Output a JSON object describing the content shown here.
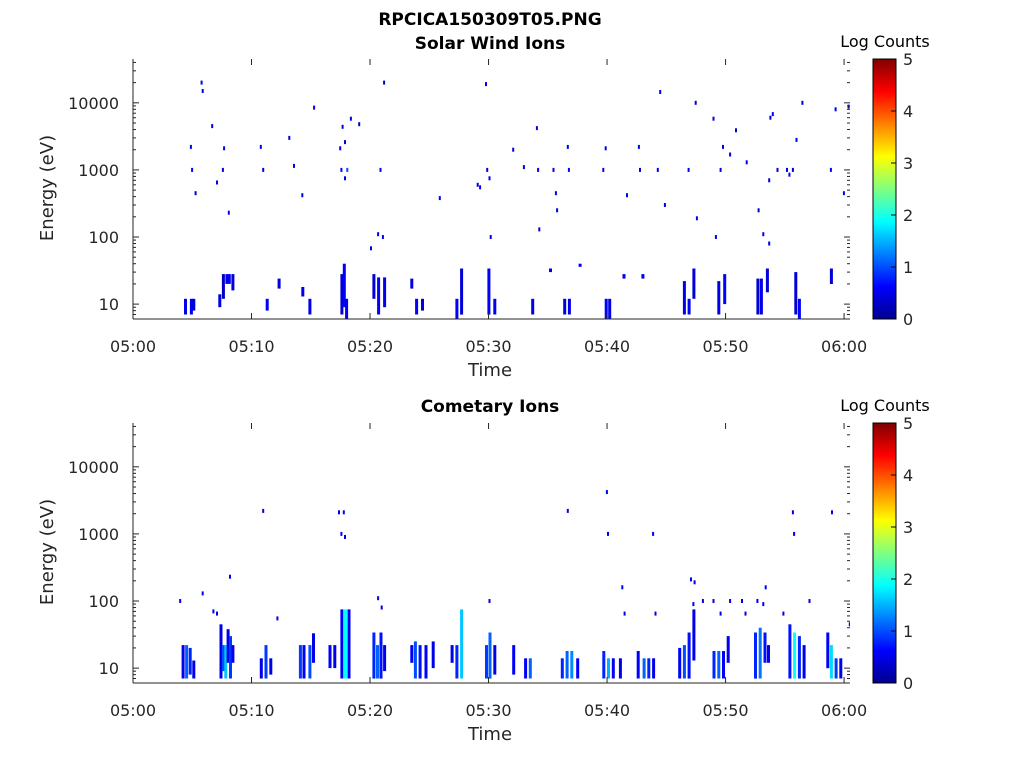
{
  "figure_title": "RPCICA150309T05.PNG",
  "colormap": [
    "#00008f",
    "#0000ff",
    "#0080ff",
    "#00ffff",
    "#80ff80",
    "#ffff00",
    "#ff8000",
    "#ff0000",
    "#800000"
  ],
  "chart_data": [
    {
      "type": "heatmap",
      "title": "Solar Wind Ions",
      "xlabel": "Time",
      "ylabel": "Energy (eV)",
      "x_ticks": [
        "05:00",
        "05:10",
        "05:20",
        "05:30",
        "05:40",
        "05:50",
        "06:00"
      ],
      "x_range_minutes": [
        0,
        60.5
      ],
      "y_scale": "log",
      "y_ticks": [
        "10",
        "100",
        "1000",
        "10000"
      ],
      "y_range": [
        6,
        45000
      ],
      "colorbar": {
        "label": "Log Counts",
        "ticks": [
          "0",
          "1",
          "2",
          "3",
          "4",
          "5"
        ],
        "range": [
          0,
          5
        ]
      },
      "cells": [
        [
          4.3,
          7,
          12,
          0.5
        ],
        [
          4.8,
          7,
          12,
          0.5
        ],
        [
          5.0,
          8,
          12,
          0.4
        ],
        [
          7.2,
          9,
          14,
          0.5
        ],
        [
          7.5,
          12,
          28,
          0.3
        ],
        [
          7.8,
          20,
          28,
          0.5
        ],
        [
          8.0,
          20,
          28,
          0.6
        ],
        [
          8.3,
          16,
          28,
          0.4
        ],
        [
          11.2,
          8,
          12,
          0.6
        ],
        [
          12.2,
          17,
          24,
          0.4
        ],
        [
          14.2,
          13,
          18,
          0.5
        ],
        [
          14.8,
          7,
          12,
          0.5
        ],
        [
          17.5,
          7,
          28,
          0.4
        ],
        [
          17.7,
          9,
          40,
          0.6
        ],
        [
          17.9,
          5,
          12,
          0.5
        ],
        [
          20.2,
          12,
          28,
          0.4
        ],
        [
          20.6,
          7,
          25,
          0.6
        ],
        [
          21.1,
          9,
          25,
          0.5
        ],
        [
          23.4,
          17,
          24,
          0.5
        ],
        [
          23.8,
          7,
          12,
          0.6
        ],
        [
          24.3,
          8,
          12,
          0.4
        ],
        [
          27.2,
          5,
          12,
          0.6
        ],
        [
          27.6,
          7,
          34,
          0.4
        ],
        [
          29.9,
          7,
          34,
          0.6
        ],
        [
          30.4,
          7,
          12,
          0.5
        ],
        [
          33.6,
          7,
          12,
          0.5
        ],
        [
          35.1,
          30,
          34,
          0.5
        ],
        [
          36.3,
          7,
          12,
          0.4
        ],
        [
          36.7,
          7,
          12,
          0.5
        ],
        [
          37.6,
          36,
          40,
          0.5
        ],
        [
          39.8,
          5,
          12,
          0.6
        ],
        [
          40.1,
          5,
          12,
          0.5
        ],
        [
          41.3,
          24,
          28,
          0.5
        ],
        [
          42.9,
          24,
          28,
          0.5
        ],
        [
          46.4,
          7,
          22,
          0.5
        ],
        [
          46.8,
          7,
          12,
          0.6
        ],
        [
          47.2,
          12,
          34,
          0.4
        ],
        [
          49.3,
          7,
          22,
          0.5
        ],
        [
          49.8,
          10,
          28,
          0.6
        ],
        [
          52.6,
          7,
          24,
          0.4
        ],
        [
          52.9,
          7,
          24,
          0.5
        ],
        [
          53.4,
          15,
          34,
          0.4
        ],
        [
          55.8,
          7,
          30,
          0.4
        ],
        [
          56.1,
          5,
          12,
          0.6
        ],
        [
          58.8,
          20,
          34,
          0.4
        ]
      ],
      "points": [
        [
          5.7,
          20000,
          0.5
        ],
        [
          5.8,
          15000,
          0.5
        ],
        [
          6.6,
          4500,
          0.4
        ],
        [
          4.8,
          2200,
          0.5
        ],
        [
          4.9,
          1000,
          0.6
        ],
        [
          5.2,
          450,
          0.4
        ],
        [
          7.0,
          650,
          0.5
        ],
        [
          7.5,
          1000,
          0.4
        ],
        [
          7.6,
          2100,
          0.5
        ],
        [
          8.0,
          230,
          0.6
        ],
        [
          10.7,
          2200,
          0.5
        ],
        [
          10.9,
          1000,
          0.5
        ],
        [
          13.1,
          3000,
          0.4
        ],
        [
          13.5,
          1150,
          0.5
        ],
        [
          14.2,
          420,
          0.5
        ],
        [
          15.2,
          8500,
          0.4
        ],
        [
          17.4,
          2100,
          0.5
        ],
        [
          17.5,
          1000,
          0.6
        ],
        [
          17.6,
          4400,
          0.4
        ],
        [
          17.8,
          2600,
          0.5
        ],
        [
          18.0,
          1000,
          1.0
        ],
        [
          18.3,
          5800,
          0.5
        ],
        [
          19.0,
          4800,
          0.4
        ],
        [
          17.8,
          750,
          0.5
        ],
        [
          20.6,
          110,
          0.5
        ],
        [
          21.0,
          100,
          0.5
        ],
        [
          21.1,
          20000,
          0.4
        ],
        [
          20.8,
          1000,
          0.6
        ],
        [
          20.0,
          68,
          0.4
        ],
        [
          25.8,
          380,
          0.5
        ],
        [
          29.0,
          600,
          0.5
        ],
        [
          29.2,
          550,
          0.5
        ],
        [
          29.8,
          1000,
          0.4
        ],
        [
          30.0,
          750,
          0.5
        ],
        [
          30.1,
          100,
          0.5
        ],
        [
          29.7,
          19000,
          0.4
        ],
        [
          32.0,
          2000,
          0.5
        ],
        [
          32.9,
          1100,
          0.4
        ],
        [
          34.0,
          4200,
          0.5
        ],
        [
          34.1,
          1000,
          0.6
        ],
        [
          34.2,
          130,
          0.4
        ],
        [
          35.4,
          1000,
          0.5
        ],
        [
          35.6,
          450,
          0.5
        ],
        [
          35.7,
          250,
          0.4
        ],
        [
          36.6,
          2200,
          0.5
        ],
        [
          36.7,
          1000,
          0.6
        ],
        [
          39.8,
          2100,
          0.4
        ],
        [
          39.6,
          1000,
          0.5
        ],
        [
          41.6,
          420,
          0.5
        ],
        [
          42.6,
          2200,
          0.5
        ],
        [
          42.7,
          1000,
          0.4
        ],
        [
          44.2,
          1000,
          0.5
        ],
        [
          44.4,
          14500,
          0.5
        ],
        [
          44.8,
          300,
          0.4
        ],
        [
          46.8,
          1000,
          0.5
        ],
        [
          47.4,
          10000,
          0.4
        ],
        [
          47.5,
          190,
          0.5
        ],
        [
          48.9,
          5800,
          0.5
        ],
        [
          49.1,
          100,
          0.5
        ],
        [
          49.5,
          1000,
          0.4
        ],
        [
          49.7,
          2200,
          0.5
        ],
        [
          50.3,
          1700,
          0.5
        ],
        [
          50.8,
          3900,
          0.4
        ],
        [
          51.7,
          1300,
          0.5
        ],
        [
          52.7,
          250,
          0.4
        ],
        [
          53.1,
          110,
          0.5
        ],
        [
          53.6,
          80,
          0.5
        ],
        [
          53.6,
          700,
          0.4
        ],
        [
          53.7,
          6000,
          0.5
        ],
        [
          53.9,
          6800,
          0.5
        ],
        [
          54.3,
          1000,
          0.4
        ],
        [
          55.1,
          1000,
          0.5
        ],
        [
          55.3,
          850,
          0.5
        ],
        [
          55.6,
          1000,
          0.4
        ],
        [
          55.9,
          2800,
          0.5
        ],
        [
          56.4,
          10000,
          0.4
        ],
        [
          58.8,
          1000,
          0.6
        ],
        [
          59.2,
          8000,
          0.5
        ],
        [
          59.9,
          450,
          0.5
        ],
        [
          60.3,
          8800,
          0.4
        ]
      ]
    },
    {
      "type": "heatmap",
      "title": "Cometary Ions",
      "xlabel": "Time",
      "ylabel": "Energy (eV)",
      "x_ticks": [
        "05:00",
        "05:10",
        "05:20",
        "05:30",
        "05:40",
        "05:50",
        "06:00"
      ],
      "x_range_minutes": [
        0,
        60.5
      ],
      "y_scale": "log",
      "y_ticks": [
        "10",
        "100",
        "1000",
        "10000"
      ],
      "y_range": [
        6,
        45000
      ],
      "colorbar": {
        "label": "Log Counts",
        "ticks": [
          "0",
          "1",
          "2",
          "3",
          "4",
          "5"
        ],
        "range": [
          0,
          5
        ]
      },
      "cells": [
        [
          4.1,
          7,
          22,
          0.5
        ],
        [
          4.4,
          7,
          22,
          1.1
        ],
        [
          4.7,
          8,
          20,
          0.8
        ],
        [
          5.0,
          7,
          13,
          0.5
        ],
        [
          7.3,
          7,
          45,
          0.5
        ],
        [
          7.5,
          9,
          22,
          1.0
        ],
        [
          7.7,
          7,
          22,
          1.6
        ],
        [
          7.9,
          12,
          38,
          0.5
        ],
        [
          8.1,
          7,
          30,
          0.9
        ],
        [
          8.3,
          12,
          22,
          0.6
        ],
        [
          10.7,
          7,
          14,
          0.5
        ],
        [
          11.1,
          7,
          22,
          0.9
        ],
        [
          11.5,
          8,
          14,
          0.5
        ],
        [
          14.0,
          7,
          22,
          0.9
        ],
        [
          14.3,
          7,
          22,
          0.6
        ],
        [
          14.8,
          7,
          22,
          1.0
        ],
        [
          15.1,
          12,
          33,
          0.5
        ],
        [
          16.5,
          10,
          22,
          0.6
        ],
        [
          16.9,
          10,
          22,
          0.5
        ],
        [
          17.5,
          7,
          75,
          0.6
        ],
        [
          17.8,
          7,
          75,
          1.9
        ],
        [
          18.1,
          7,
          75,
          0.5
        ],
        [
          20.2,
          7,
          34,
          0.8
        ],
        [
          20.5,
          7,
          22,
          1.1
        ],
        [
          20.8,
          7,
          34,
          0.7
        ],
        [
          21.1,
          9,
          22,
          0.5
        ],
        [
          23.4,
          12,
          22,
          0.6
        ],
        [
          23.7,
          7,
          25,
          1.0
        ],
        [
          24.1,
          7,
          22,
          0.7
        ],
        [
          24.6,
          7,
          22,
          0.6
        ],
        [
          25.2,
          10,
          25,
          0.5
        ],
        [
          26.8,
          12,
          22,
          0.5
        ],
        [
          27.2,
          7,
          22,
          0.8
        ],
        [
          27.6,
          7,
          75,
          1.6
        ],
        [
          29.7,
          7,
          22,
          0.9
        ],
        [
          30.0,
          7,
          34,
          1.1
        ],
        [
          30.4,
          8,
          22,
          0.5
        ],
        [
          32.0,
          8,
          22,
          0.6
        ],
        [
          33.0,
          7,
          14,
          0.6
        ],
        [
          33.4,
          7,
          14,
          1.1
        ],
        [
          36.1,
          7,
          14,
          0.8
        ],
        [
          36.5,
          7,
          18,
          1.1
        ],
        [
          36.9,
          7,
          18,
          1.3
        ],
        [
          37.4,
          7,
          14,
          0.6
        ],
        [
          39.6,
          7,
          18,
          0.8
        ],
        [
          40.0,
          7,
          14,
          1.5
        ],
        [
          40.4,
          7,
          14,
          0.6
        ],
        [
          41.0,
          7,
          14,
          0.5
        ],
        [
          42.5,
          7,
          18,
          0.6
        ],
        [
          43.0,
          7,
          14,
          1.1
        ],
        [
          43.4,
          7,
          14,
          0.8
        ],
        [
          43.8,
          7,
          14,
          0.5
        ],
        [
          46.0,
          7,
          20,
          0.6
        ],
        [
          46.4,
          7,
          22,
          1.0
        ],
        [
          46.8,
          7,
          34,
          0.7
        ],
        [
          47.2,
          13,
          75,
          0.5
        ],
        [
          48.9,
          7,
          18,
          0.8
        ],
        [
          49.3,
          7,
          18,
          1.1
        ],
        [
          49.7,
          7,
          18,
          0.6
        ],
        [
          50.1,
          12,
          30,
          0.5
        ],
        [
          52.4,
          7,
          34,
          0.8
        ],
        [
          52.8,
          7,
          40,
          1.2
        ],
        [
          53.2,
          12,
          34,
          0.7
        ],
        [
          53.5,
          12,
          22,
          0.5
        ],
        [
          55.3,
          7,
          45,
          0.7
        ],
        [
          55.7,
          7,
          34,
          1.9
        ],
        [
          56.1,
          7,
          30,
          0.8
        ],
        [
          56.5,
          7,
          22,
          0.5
        ],
        [
          58.5,
          10,
          34,
          0.6
        ],
        [
          58.8,
          7,
          22,
          1.7
        ],
        [
          59.2,
          7,
          14,
          0.9
        ],
        [
          59.6,
          7,
          14,
          0.5
        ]
      ],
      "points": [
        [
          3.9,
          100,
          0.5
        ],
        [
          5.8,
          130,
          0.5
        ],
        [
          6.7,
          70,
          0.5
        ],
        [
          7.0,
          65,
          0.5
        ],
        [
          8.1,
          230,
          0.6
        ],
        [
          10.9,
          2200,
          0.5
        ],
        [
          12.1,
          55,
          0.5
        ],
        [
          17.3,
          2100,
          0.5
        ],
        [
          17.7,
          2100,
          0.5
        ],
        [
          17.5,
          1000,
          0.6
        ],
        [
          17.8,
          900,
          0.5
        ],
        [
          20.6,
          110,
          0.5
        ],
        [
          20.9,
          80,
          0.5
        ],
        [
          30.0,
          100,
          0.5
        ],
        [
          36.6,
          2200,
          0.5
        ],
        [
          39.9,
          4200,
          0.5
        ],
        [
          40.0,
          1000,
          0.5
        ],
        [
          41.2,
          160,
          0.5
        ],
        [
          41.4,
          65,
          0.5
        ],
        [
          43.8,
          1000,
          0.6
        ],
        [
          44.0,
          65,
          0.5
        ],
        [
          47.0,
          210,
          0.6
        ],
        [
          47.3,
          190,
          0.5
        ],
        [
          47.2,
          90,
          0.5
        ],
        [
          48.0,
          100,
          0.5
        ],
        [
          48.9,
          100,
          0.5
        ],
        [
          49.5,
          65,
          0.5
        ],
        [
          50.3,
          100,
          0.5
        ],
        [
          51.3,
          100,
          0.5
        ],
        [
          51.6,
          65,
          0.5
        ],
        [
          52.6,
          100,
          0.5
        ],
        [
          53.1,
          90,
          0.5
        ],
        [
          53.3,
          160,
          0.5
        ],
        [
          54.8,
          65,
          0.5
        ],
        [
          55.6,
          2100,
          0.5
        ],
        [
          55.7,
          1000,
          0.5
        ],
        [
          57.0,
          100,
          0.5
        ],
        [
          58.9,
          2100,
          0.5
        ],
        [
          60.4,
          45,
          0.5
        ]
      ]
    }
  ]
}
